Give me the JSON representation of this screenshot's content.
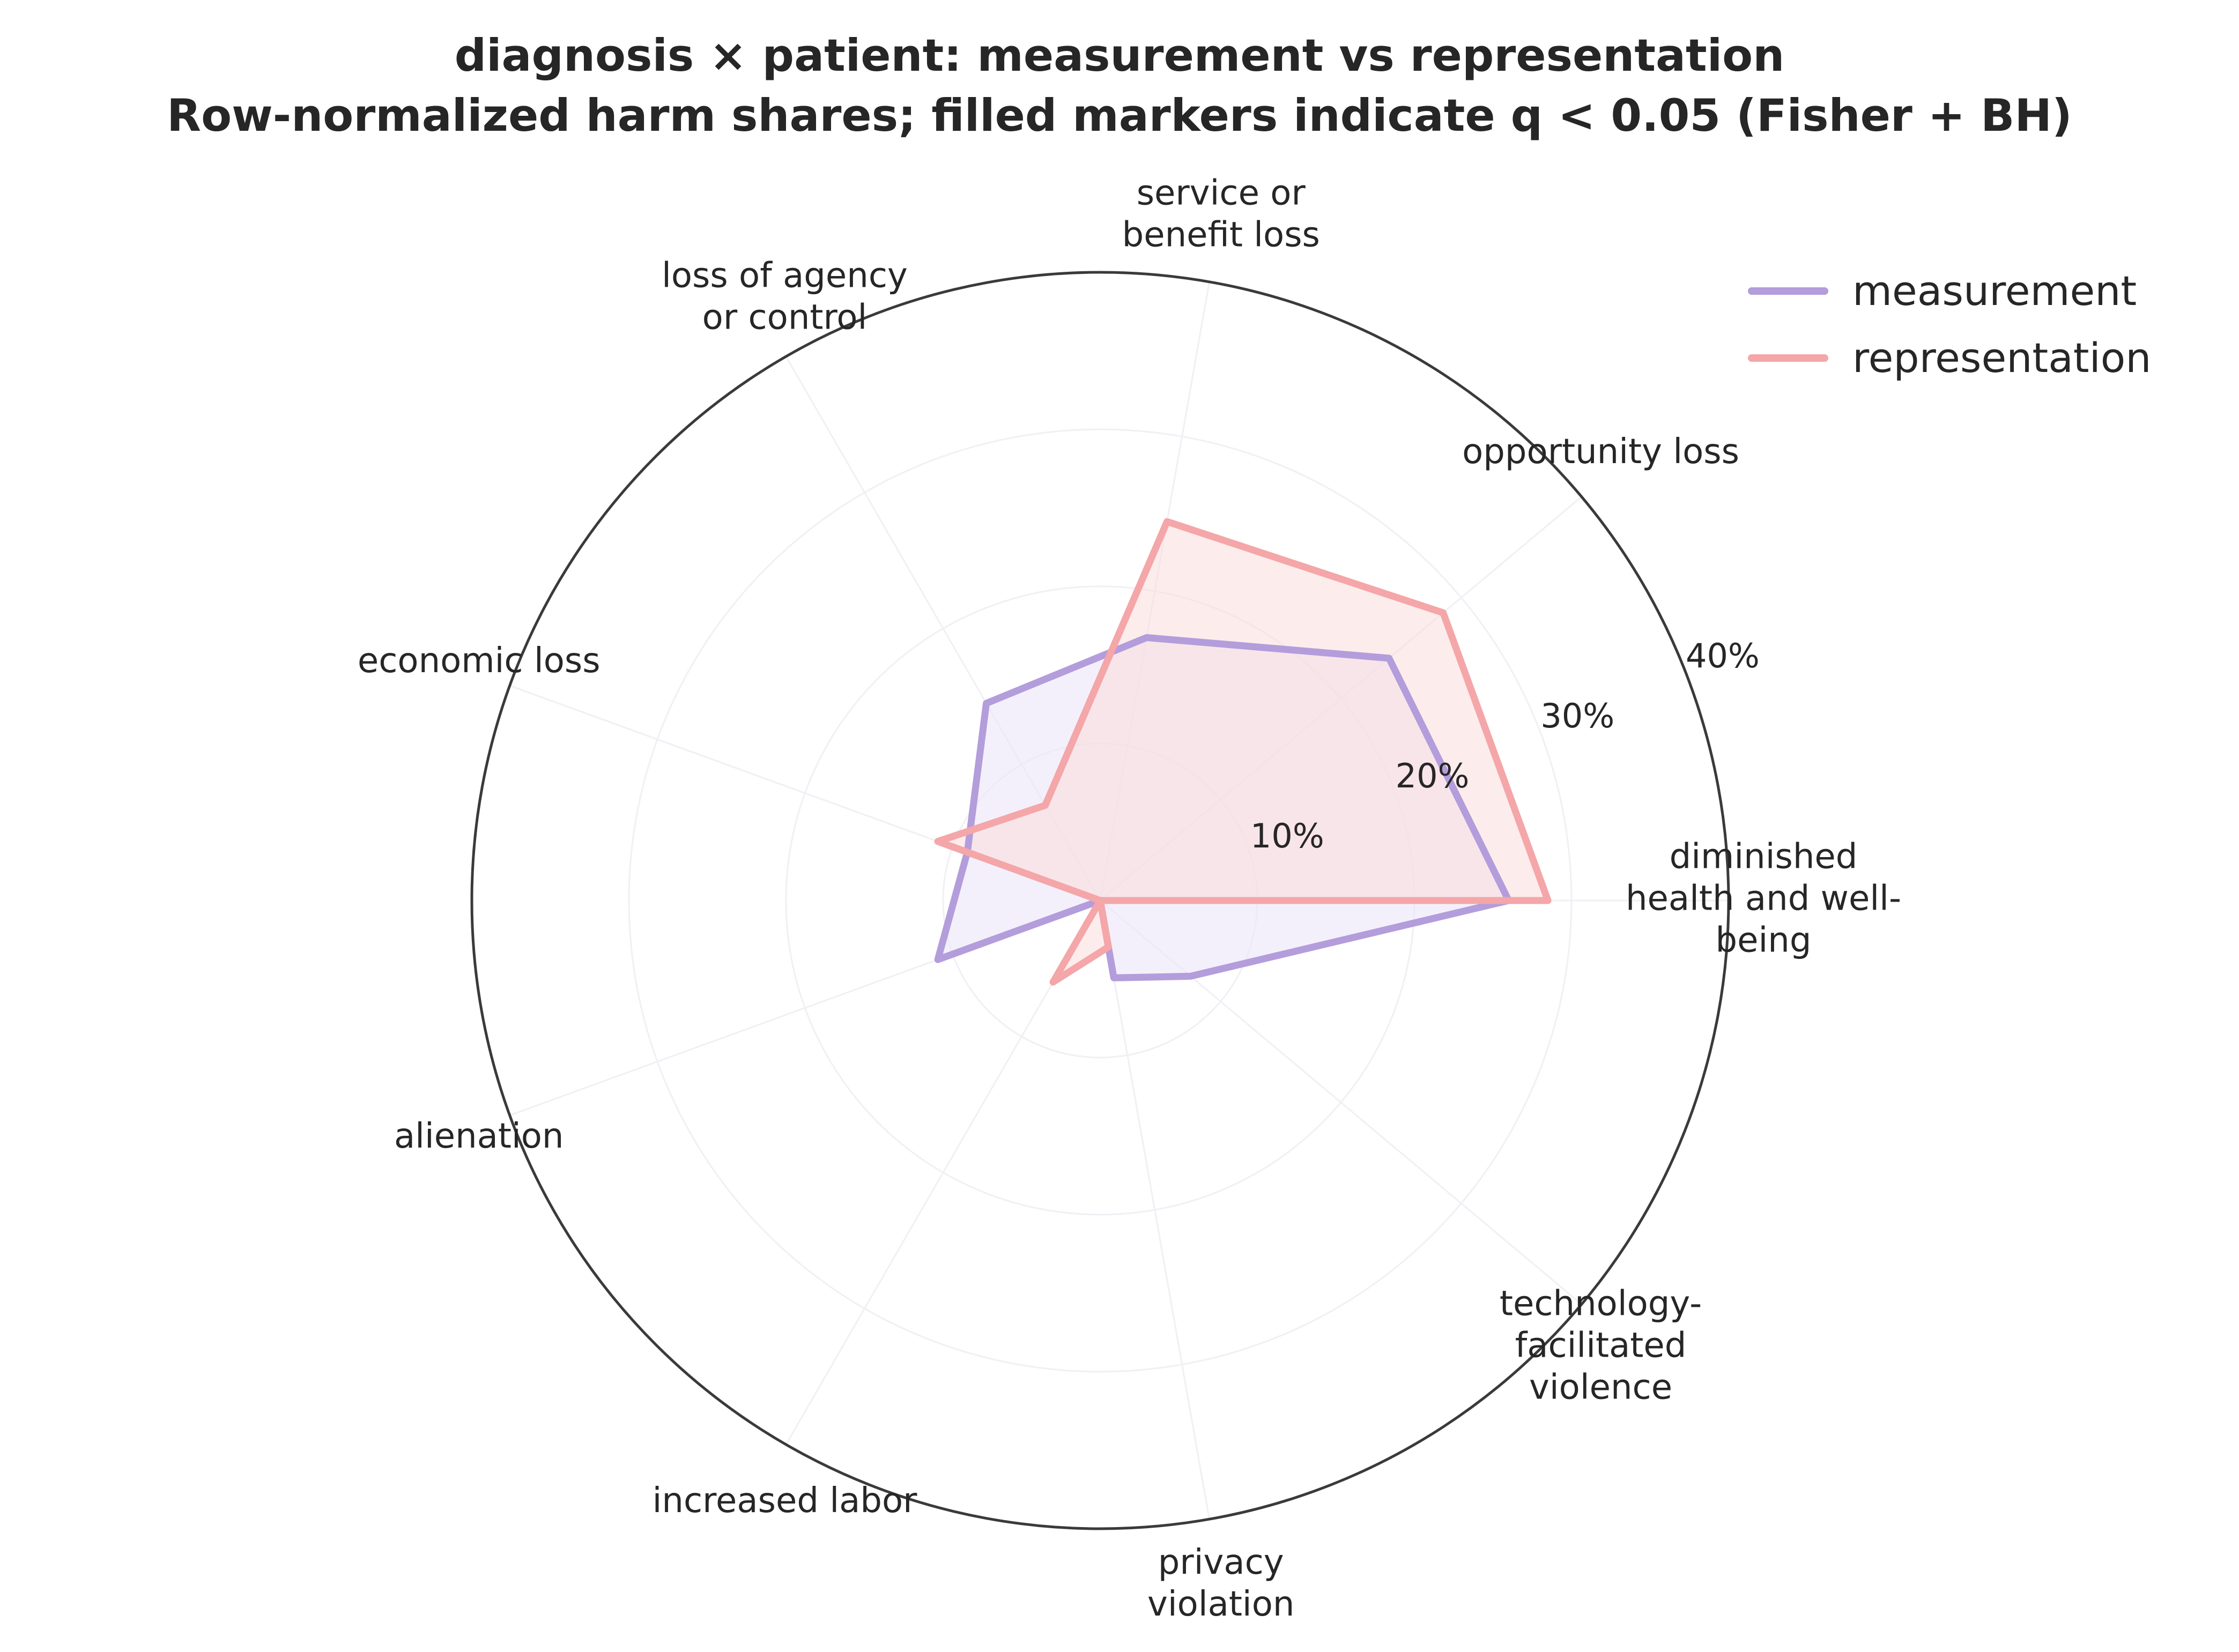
{
  "chart_data": {
    "type": "radar",
    "title_lines": [
      "diagnosis × patient: measurement vs representation",
      "Row-normalized harm shares; filled markers indicate q < 0.05 (Fisher + BH)"
    ],
    "categories": [
      [
        "diminished",
        "health and well-",
        "being"
      ],
      [
        "opportunity loss"
      ],
      [
        "service or",
        "benefit loss"
      ],
      [
        "loss of agency",
        "or control"
      ],
      [
        "economic loss"
      ],
      [
        "alienation"
      ],
      [
        "increased labor"
      ],
      [
        "privacy",
        "violation"
      ],
      [
        "technology-",
        "facilitated",
        "violence"
      ]
    ],
    "r_ticks": [
      "10%",
      "20%",
      "30%",
      "40%"
    ],
    "r_tick_values": [
      10,
      20,
      30,
      40
    ],
    "r_max": 40,
    "grid": true,
    "legend_position": "top-right",
    "series": [
      {
        "name": "measurement",
        "color": "#b39ddb",
        "fill": "#ebe4f7",
        "values": [
          26.0,
          24.0,
          17.0,
          14.5,
          9.0,
          11.0,
          0.0,
          5.0,
          7.5
        ]
      },
      {
        "name": "representation",
        "color": "#f4a6a8",
        "fill": "#fbdddd",
        "values": [
          28.5,
          28.5,
          24.5,
          7.0,
          11.0,
          0.0,
          6.0,
          3.0,
          0.0
        ]
      }
    ]
  }
}
